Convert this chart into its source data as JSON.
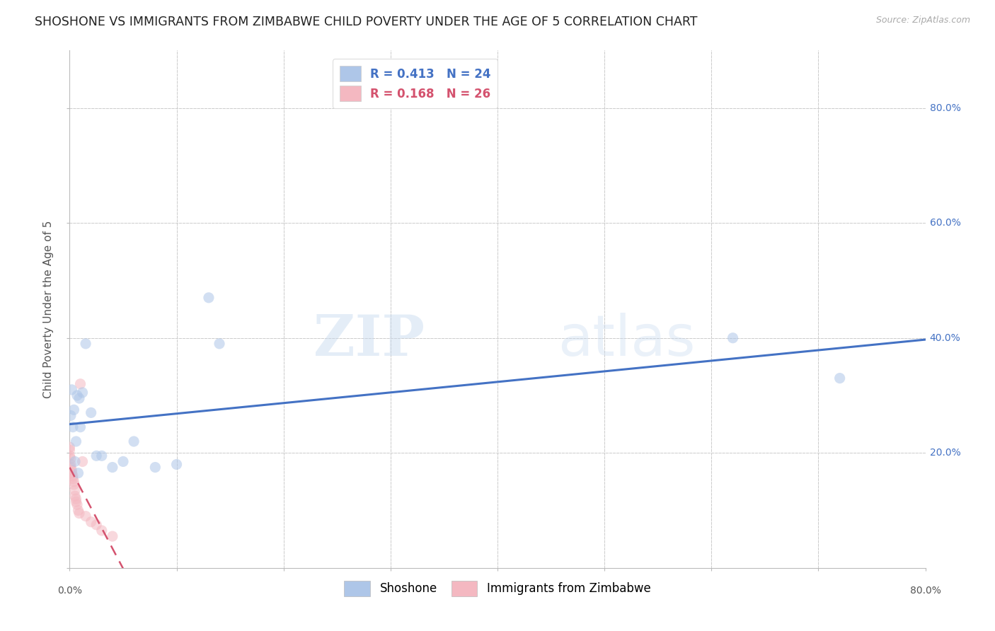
{
  "title": "SHOSHONE VS IMMIGRANTS FROM ZIMBABWE CHILD POVERTY UNDER THE AGE OF 5 CORRELATION CHART",
  "source": "Source: ZipAtlas.com",
  "ylabel": "Child Poverty Under the Age of 5",
  "watermark_zip": "ZIP",
  "watermark_atlas": "atlas",
  "legend_r_entries": [
    {
      "label_r": "R = 0.413",
      "label_n": "N = 24",
      "color": "#aec6e8",
      "text_color": "#4472c4"
    },
    {
      "label_r": "R = 0.168",
      "label_n": "N = 26",
      "color": "#f4b8c1",
      "text_color": "#d4526e"
    }
  ],
  "legend_bottom": [
    {
      "label": "Shoshone",
      "color": "#aec6e8"
    },
    {
      "label": "Immigrants from Zimbabwe",
      "color": "#f4b8c1"
    }
  ],
  "shoshone_x": [
    0.001,
    0.002,
    0.003,
    0.004,
    0.005,
    0.006,
    0.007,
    0.008,
    0.009,
    0.01,
    0.012,
    0.015,
    0.02,
    0.025,
    0.03,
    0.04,
    0.05,
    0.06,
    0.08,
    0.1,
    0.13,
    0.14,
    0.62,
    0.72
  ],
  "shoshone_y": [
    0.265,
    0.31,
    0.245,
    0.275,
    0.185,
    0.22,
    0.3,
    0.165,
    0.295,
    0.245,
    0.305,
    0.39,
    0.27,
    0.195,
    0.195,
    0.175,
    0.185,
    0.22,
    0.175,
    0.18,
    0.47,
    0.39,
    0.4,
    0.33
  ],
  "zimbabwe_x": [
    0.0,
    0.0,
    0.0,
    0.001,
    0.001,
    0.001,
    0.002,
    0.002,
    0.003,
    0.003,
    0.004,
    0.004,
    0.005,
    0.005,
    0.006,
    0.006,
    0.007,
    0.008,
    0.009,
    0.01,
    0.012,
    0.015,
    0.02,
    0.025,
    0.03,
    0.04
  ],
  "zimbabwe_y": [
    0.21,
    0.205,
    0.195,
    0.19,
    0.18,
    0.175,
    0.17,
    0.165,
    0.16,
    0.155,
    0.15,
    0.145,
    0.135,
    0.125,
    0.12,
    0.115,
    0.11,
    0.1,
    0.095,
    0.32,
    0.185,
    0.09,
    0.08,
    0.075,
    0.065,
    0.055
  ],
  "shoshone_color": "#aec6e8",
  "zimbabwe_color": "#f4b8c1",
  "shoshone_line_color": "#4472c4",
  "zimbabwe_line_color": "#d4526e",
  "xlim": [
    0.0,
    0.8
  ],
  "ylim": [
    0.0,
    0.9
  ],
  "ytick_vals": [
    0.0,
    0.2,
    0.4,
    0.6,
    0.8
  ],
  "ytick_labels_right": [
    "20.0%",
    "40.0%",
    "60.0%",
    "80.0%"
  ],
  "background_color": "#ffffff",
  "grid_color": "#cccccc",
  "marker_size": 120,
  "marker_alpha": 0.55
}
